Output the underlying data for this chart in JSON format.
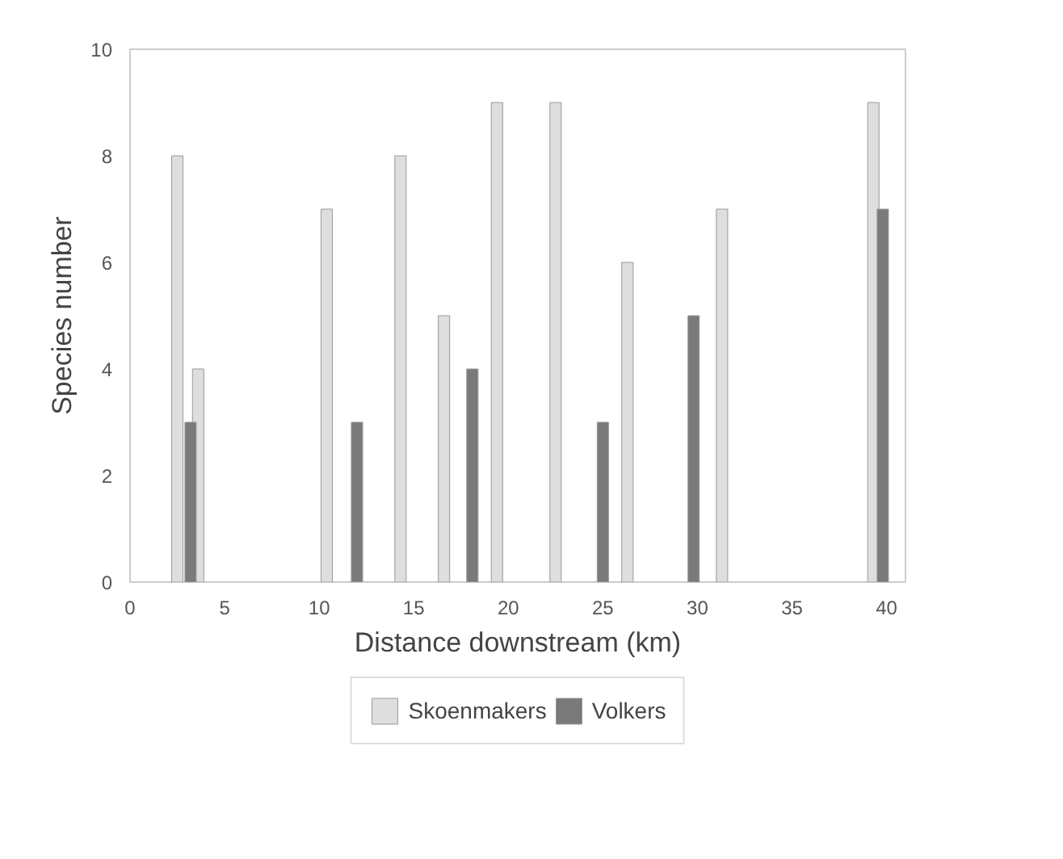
{
  "chart_data": {
    "type": "bar",
    "xlabel": "Distance downstream (km)",
    "ylabel": "Species number",
    "xlim": [
      0,
      41
    ],
    "ylim": [
      0,
      10
    ],
    "xticks": [
      0,
      5,
      10,
      15,
      20,
      25,
      30,
      35,
      40
    ],
    "yticks": [
      0,
      2,
      4,
      6,
      8,
      10
    ],
    "grid": false,
    "legend": "bottom",
    "series": [
      {
        "name": "Skoenmakers",
        "color": "#dedede",
        "x": [
          2.5,
          3.6,
          10.4,
          14.3,
          16.6,
          19.4,
          22.5,
          26.3,
          31.3,
          39.3
        ],
        "values": [
          8,
          4,
          7,
          8,
          5,
          9,
          9,
          6,
          7,
          9
        ]
      },
      {
        "name": "Volkers",
        "color": "#7a7a7a",
        "x": [
          3.2,
          12,
          18.1,
          25,
          29.8,
          39.8
        ],
        "values": [
          3,
          3,
          4,
          3,
          5,
          7
        ]
      }
    ]
  }
}
